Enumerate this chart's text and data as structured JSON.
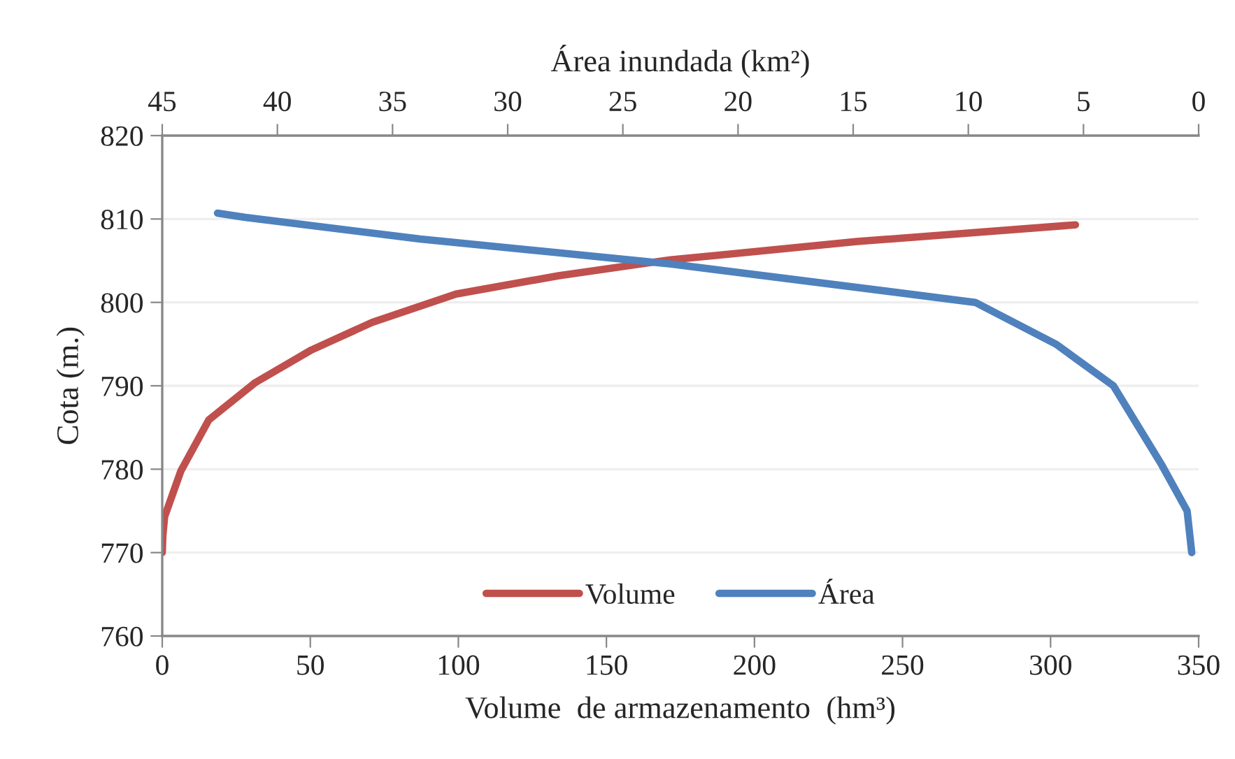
{
  "chart_data": {
    "type": "line",
    "xlabel": "Volume  de armazenamento  (hm³)",
    "x2label": "Área inundada (km²)",
    "ylabel": "Cota (m.)",
    "xlim": [
      0,
      350
    ],
    "xticks": [
      0,
      50,
      100,
      150,
      200,
      250,
      300,
      350
    ],
    "x2lim": [
      45,
      0
    ],
    "x2ticks": [
      45,
      40,
      35,
      30,
      25,
      20,
      15,
      10,
      5,
      0
    ],
    "ylim": [
      760,
      820
    ],
    "yticks": [
      760,
      770,
      780,
      790,
      800,
      810,
      820
    ],
    "grid": "y",
    "legend": "bottom",
    "line_style": "solid",
    "marker": "none",
    "series": [
      {
        "name": "Volume",
        "color": "#c0504d",
        "x": [
          0,
          0.2,
          0.8,
          6.3,
          15.7,
          31.5,
          50.4,
          70.9,
          99.2,
          133.9,
          165.4,
          171.7,
          234.7,
          308.4
        ],
        "values": [
          770,
          772,
          774.3,
          779.8,
          785.9,
          790.4,
          794.3,
          797.6,
          801,
          803.2,
          804.8,
          805.1,
          807.3,
          809.3
        ]
      },
      {
        "name": "Área",
        "color": "#4f81bd",
        "axis": "x2",
        "x": [
          42.6,
          41.4,
          33.8,
          22.9,
          9.7,
          6.2,
          3.7,
          1.6,
          0.5,
          0.3
        ],
        "values": [
          810.7,
          810.2,
          807.6,
          804.6,
          800,
          795,
          790,
          780.5,
          775,
          770
        ]
      }
    ]
  }
}
